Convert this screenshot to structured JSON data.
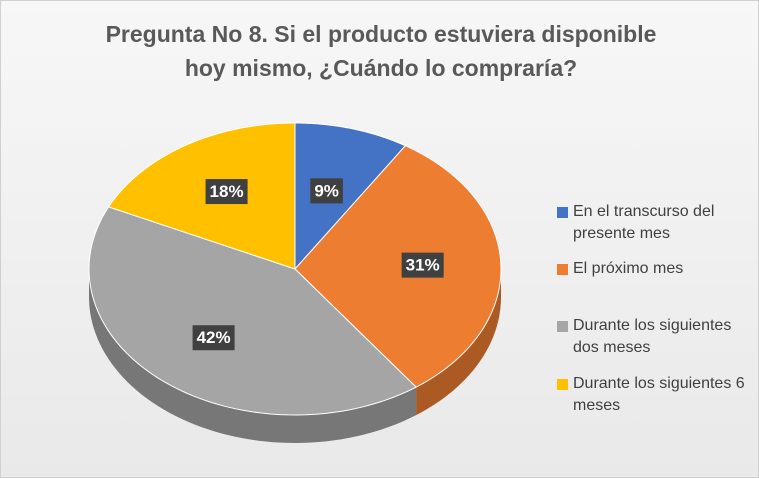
{
  "chart_data": {
    "type": "pie",
    "title": "Pregunta No 8. Si el producto estuviera disponible hoy mismo, ¿Cuándo lo compraría?",
    "categories": [
      "En el transcurso del presente mes",
      "El próximo mes",
      "Durante los siguientes dos meses",
      "Durante los siguientes 6 meses"
    ],
    "values": [
      9,
      31,
      42,
      18
    ],
    "value_labels": [
      "9%",
      "31%",
      "42%",
      "18%"
    ],
    "colors": [
      "#4472c4",
      "#ed7d31",
      "#a5a5a5",
      "#ffc000"
    ],
    "legend": "right"
  }
}
